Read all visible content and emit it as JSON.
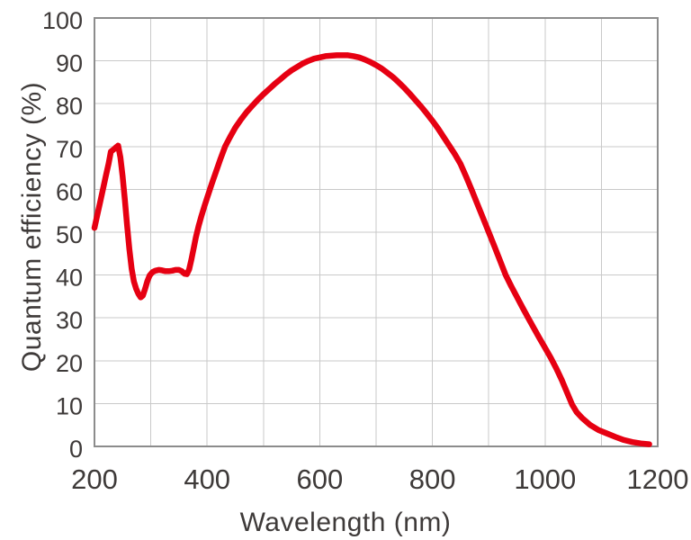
{
  "chart_data": {
    "type": "line",
    "title": "",
    "xlabel": "Wavelength (nm)",
    "ylabel": "Quantum efficiency (%)",
    "xlim": [
      200,
      1200
    ],
    "ylim": [
      0,
      100
    ],
    "x_ticks": [
      200,
      400,
      600,
      800,
      1000,
      1200
    ],
    "x_grid_step": 100,
    "y_ticks": [
      0,
      10,
      20,
      30,
      40,
      50,
      60,
      70,
      80,
      90,
      100
    ],
    "grid": true,
    "legend": false,
    "series": [
      {
        "name": "Quantum efficiency",
        "color": "#e60012",
        "points": [
          [
            200,
            51
          ],
          [
            205,
            54
          ],
          [
            210,
            57
          ],
          [
            215,
            60
          ],
          [
            220,
            63
          ],
          [
            225,
            66
          ],
          [
            229,
            68.8
          ],
          [
            234,
            69.3
          ],
          [
            238,
            69.8
          ],
          [
            242,
            70.2
          ],
          [
            246,
            67.5
          ],
          [
            250,
            63
          ],
          [
            254,
            57.5
          ],
          [
            258,
            51.5
          ],
          [
            262,
            46
          ],
          [
            266,
            41.5
          ],
          [
            270,
            38.5
          ],
          [
            274,
            36.8
          ],
          [
            278,
            35.6
          ],
          [
            282,
            34.8
          ],
          [
            286,
            35.2
          ],
          [
            290,
            36.8
          ],
          [
            294,
            38.6
          ],
          [
            298,
            39.9
          ],
          [
            303,
            40.7
          ],
          [
            308,
            41
          ],
          [
            314,
            41.2
          ],
          [
            320,
            41.1
          ],
          [
            326,
            40.9
          ],
          [
            332,
            40.9
          ],
          [
            338,
            41
          ],
          [
            344,
            41.2
          ],
          [
            350,
            41.2
          ],
          [
            355,
            40.9
          ],
          [
            360,
            40.3
          ],
          [
            364,
            40.2
          ],
          [
            368,
            41.3
          ],
          [
            372,
            43.6
          ],
          [
            376,
            46.2
          ],
          [
            380,
            48.8
          ],
          [
            385,
            51.5
          ],
          [
            390,
            53.8
          ],
          [
            395,
            56
          ],
          [
            400,
            58
          ],
          [
            408,
            61.2
          ],
          [
            416,
            64.2
          ],
          [
            424,
            67.2
          ],
          [
            432,
            70
          ],
          [
            441,
            72.3
          ],
          [
            450,
            74.4
          ],
          [
            460,
            76.3
          ],
          [
            470,
            78
          ],
          [
            480,
            79.5
          ],
          [
            490,
            80.9
          ],
          [
            500,
            82.2
          ],
          [
            510,
            83.4
          ],
          [
            520,
            84.6
          ],
          [
            530,
            85.7
          ],
          [
            540,
            86.8
          ],
          [
            550,
            87.8
          ],
          [
            560,
            88.6
          ],
          [
            570,
            89.4
          ],
          [
            580,
            90
          ],
          [
            590,
            90.5
          ],
          [
            600,
            90.8
          ],
          [
            610,
            91.1
          ],
          [
            620,
            91.2
          ],
          [
            630,
            91.3
          ],
          [
            640,
            91.3
          ],
          [
            650,
            91.3
          ],
          [
            660,
            91.1
          ],
          [
            670,
            90.8
          ],
          [
            680,
            90.3
          ],
          [
            690,
            89.7
          ],
          [
            700,
            89
          ],
          [
            710,
            88.2
          ],
          [
            720,
            87.2
          ],
          [
            730,
            86.2
          ],
          [
            740,
            85
          ],
          [
            750,
            83.7
          ],
          [
            760,
            82.3
          ],
          [
            770,
            80.8
          ],
          [
            780,
            79.3
          ],
          [
            790,
            77.7
          ],
          [
            800,
            76
          ],
          [
            810,
            74.2
          ],
          [
            820,
            72.2
          ],
          [
            831,
            70
          ],
          [
            840,
            68.2
          ],
          [
            850,
            65.9
          ],
          [
            860,
            62.9
          ],
          [
            870,
            59.8
          ],
          [
            880,
            56.5
          ],
          [
            890,
            53.3
          ],
          [
            900,
            50
          ],
          [
            910,
            46.7
          ],
          [
            920,
            43.4
          ],
          [
            930,
            40
          ],
          [
            940,
            37.4
          ],
          [
            950,
            34.9
          ],
          [
            960,
            32.4
          ],
          [
            970,
            30
          ],
          [
            980,
            27.6
          ],
          [
            990,
            25.3
          ],
          [
            1000,
            23
          ],
          [
            1010,
            20.7
          ],
          [
            1020,
            18.2
          ],
          [
            1030,
            15.4
          ],
          [
            1040,
            12.3
          ],
          [
            1048,
            9.8
          ],
          [
            1056,
            8
          ],
          [
            1066,
            6.6
          ],
          [
            1080,
            5
          ],
          [
            1095,
            3.8
          ],
          [
            1110,
            3
          ],
          [
            1125,
            2.2
          ],
          [
            1140,
            1.5
          ],
          [
            1155,
            1
          ],
          [
            1170,
            0.7
          ],
          [
            1185,
            0.5
          ]
        ]
      }
    ]
  },
  "colors": {
    "curve_red": "#e60012",
    "text": "#3e3a39",
    "gridline": "#c9c9c9",
    "axis_border": "#8c8c8c",
    "background": "#ffffff"
  }
}
